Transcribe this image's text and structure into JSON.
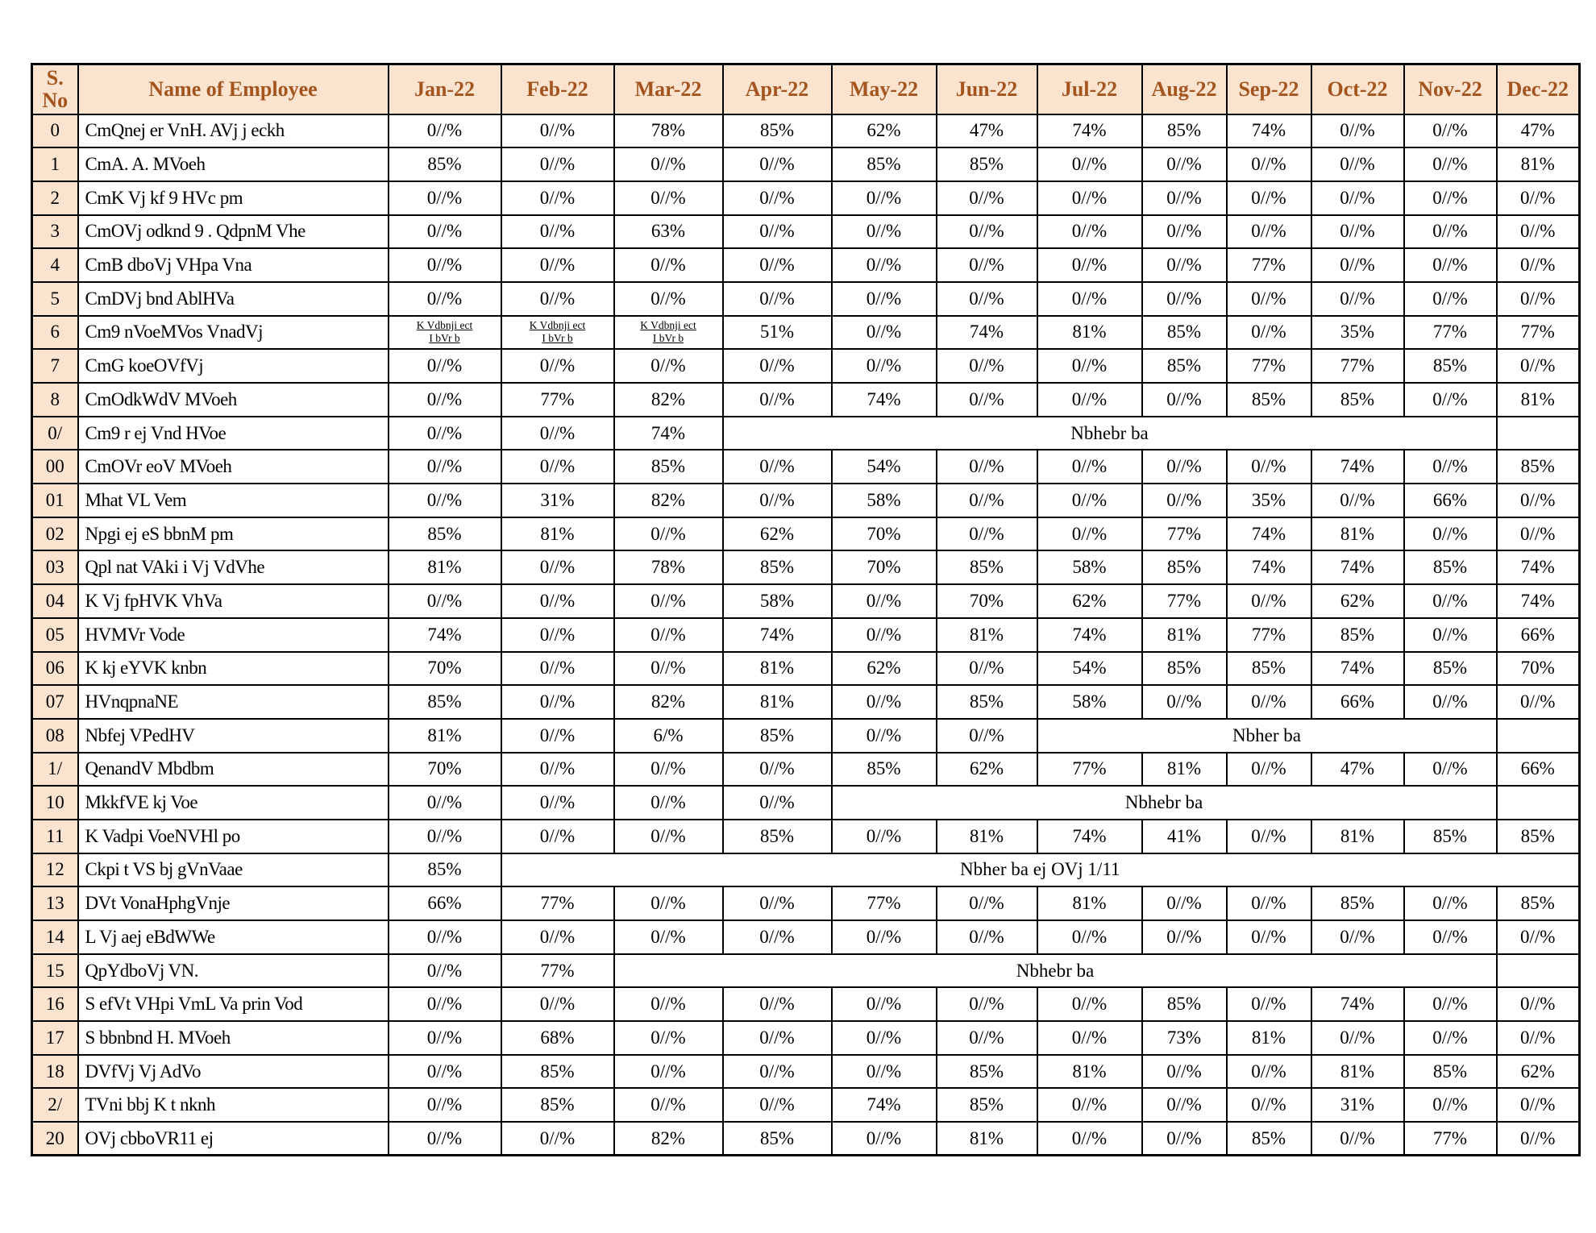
{
  "table": {
    "sno_header": "S. No",
    "name_header": "Name of Employee",
    "month_headers": [
      "Jan-22",
      "Feb-22",
      "Mar-22",
      "Apr-22",
      "May-22",
      "Jun-22",
      "Jul-22",
      "Aug-22",
      "Sep-22",
      "Oct-22",
      "Nov-22",
      "Dec-22"
    ],
    "rows": [
      {
        "sno": "0",
        "name": "CmQnej er VnH. AVj j eckh",
        "cells": [
          "0//%",
          "0//%",
          "78%",
          "85%",
          "62%",
          "47%",
          "74%",
          "85%",
          "74%",
          "0//%",
          "0//%",
          "47%"
        ]
      },
      {
        "sno": "1",
        "name": "CmA. A. MVoeh",
        "cells": [
          "85%",
          "0//%",
          "0//%",
          "0//%",
          "85%",
          "85%",
          "0//%",
          "0//%",
          "0//%",
          "0//%",
          "0//%",
          "81%"
        ]
      },
      {
        "sno": "2",
        "name": "CmK Vj kf 9 HVc pm",
        "cells": [
          "0//%",
          "0//%",
          "0//%",
          "0//%",
          "0//%",
          "0//%",
          "0//%",
          "0//%",
          "0//%",
          "0//%",
          "0//%",
          "0//%"
        ]
      },
      {
        "sno": "3",
        "name": "CmOVj odknd 9 . QdpnM Vhe",
        "cells": [
          "0//%",
          "0//%",
          "63%",
          "0//%",
          "0//%",
          "0//%",
          "0//%",
          "0//%",
          "0//%",
          "0//%",
          "0//%",
          "0//%"
        ]
      },
      {
        "sno": "4",
        "name": "CmB dboVj VHpa Vna",
        "cells": [
          "0//%",
          "0//%",
          "0//%",
          "0//%",
          "0//%",
          "0//%",
          "0//%",
          "0//%",
          "77%",
          "0//%",
          "0//%",
          "0//%"
        ]
      },
      {
        "sno": "5",
        "name": "CmDVj bnd AblHVa",
        "cells": [
          "0//%",
          "0//%",
          "0//%",
          "0//%",
          "0//%",
          "0//%",
          "0//%",
          "0//%",
          "0//%",
          "0//%",
          "0//%",
          "0//%"
        ]
      },
      {
        "sno": "6",
        "name": "Cm9 nVoeMVos VnadVj",
        "cells": [
          {
            "lines": [
              "K Vdbnji ect",
              "I bVr b"
            ]
          },
          {
            "lines": [
              "K Vdbnji ect",
              "I bVr b"
            ]
          },
          {
            "lines": [
              "K Vdbnji ect",
              "I bVr b"
            ]
          },
          "51%",
          "0//%",
          "74%",
          "81%",
          "85%",
          "0//%",
          "35%",
          "77%",
          "77%"
        ]
      },
      {
        "sno": "7",
        "name": "CmG koeOVfVj",
        "cells": [
          "0//%",
          "0//%",
          "0//%",
          "0//%",
          "0//%",
          "0//%",
          "0//%",
          "85%",
          "77%",
          "77%",
          "85%",
          "0//%"
        ]
      },
      {
        "sno": "8",
        "name": "CmOdkWdV MVoeh",
        "cells": [
          "0//%",
          "77%",
          "82%",
          "0//%",
          "74%",
          "0//%",
          "0//%",
          "0//%",
          "85%",
          "85%",
          "0//%",
          "81%"
        ]
      },
      {
        "sno": "0/",
        "name": "Cm9 r ej Vnd HVoe",
        "cells": [
          "0//%",
          "0//%",
          "74%",
          {
            "colspan": 8,
            "value": "Nbhebr ba"
          },
          ""
        ]
      },
      {
        "sno": "00",
        "name": "CmOVr eoV MVoeh",
        "cells": [
          "0//%",
          "0//%",
          "85%",
          "0//%",
          "54%",
          "0//%",
          "0//%",
          "0//%",
          "0//%",
          "74%",
          "0//%",
          "85%"
        ]
      },
      {
        "sno": "01",
        "name": "Mhat VL Vem",
        "cells": [
          "0//%",
          "31%",
          "82%",
          "0//%",
          "58%",
          "0//%",
          "0//%",
          "0//%",
          "35%",
          "0//%",
          "66%",
          "0//%"
        ]
      },
      {
        "sno": "02",
        "name": "Npgi ej eS bbnM pm",
        "cells": [
          "85%",
          "81%",
          "0//%",
          "62%",
          "70%",
          "0//%",
          "0//%",
          "77%",
          "74%",
          "81%",
          "0//%",
          "0//%"
        ]
      },
      {
        "sno": "03",
        "name": "Qpl nat VAki i Vj VdVhe",
        "cells": [
          "81%",
          "0//%",
          "78%",
          "85%",
          "70%",
          "85%",
          "58%",
          "85%",
          "74%",
          "74%",
          "85%",
          "74%"
        ]
      },
      {
        "sno": "04",
        "name": "K Vj fpHVK VhVa",
        "cells": [
          "0//%",
          "0//%",
          "0//%",
          "58%",
          "0//%",
          "70%",
          "62%",
          "77%",
          "0//%",
          "62%",
          "0//%",
          "74%"
        ]
      },
      {
        "sno": "05",
        "name": "HVMVr Vode",
        "cells": [
          "74%",
          "0//%",
          "0//%",
          "74%",
          "0//%",
          "81%",
          "74%",
          "81%",
          "77%",
          "85%",
          "0//%",
          "66%"
        ]
      },
      {
        "sno": "06",
        "name": "K kj eYVK knbn",
        "cells": [
          "70%",
          "0//%",
          "0//%",
          "81%",
          "62%",
          "0//%",
          "54%",
          "85%",
          "85%",
          "74%",
          "85%",
          "70%"
        ]
      },
      {
        "sno": "07",
        "name": "HVnqpnaNE",
        "cells": [
          "85%",
          "0//%",
          "82%",
          "81%",
          "0//%",
          "85%",
          "58%",
          "0//%",
          "0//%",
          "66%",
          "0//%",
          "0//%"
        ]
      },
      {
        "sno": "08",
        "name": "Nbfej VPedHV",
        "cells": [
          "81%",
          "0//%",
          "6/%",
          "85%",
          "0//%",
          "0//%",
          {
            "colspan": 5,
            "value": "Nbher ba"
          },
          ""
        ]
      },
      {
        "sno": "1/",
        "name": "QenandV Mbdbm",
        "cells": [
          "70%",
          "0//%",
          "0//%",
          "0//%",
          "85%",
          "62%",
          "77%",
          "81%",
          "0//%",
          "47%",
          "0//%",
          "66%"
        ]
      },
      {
        "sno": "10",
        "name": "MkkfVE kj Voe",
        "cells": [
          "0//%",
          "0//%",
          "0//%",
          "0//%",
          {
            "colspan": 7,
            "value": "Nbhebr ba"
          },
          ""
        ]
      },
      {
        "sno": "11",
        "name": "K Vadpi VoeNVHl po",
        "cells": [
          "0//%",
          "0//%",
          "0//%",
          "85%",
          "0//%",
          "81%",
          "74%",
          "41%",
          "0//%",
          "81%",
          "85%",
          "85%"
        ]
      },
      {
        "sno": "12",
        "name": "Ckpi t VS bj gVnVaae",
        "cells": [
          "85%",
          {
            "colspan": 11,
            "value": "Nbher ba ej OVj 1/11"
          }
        ]
      },
      {
        "sno": "13",
        "name": "DVt VonaHphgVnje",
        "cells": [
          "66%",
          "77%",
          "0//%",
          "0//%",
          "77%",
          "0//%",
          "81%",
          "0//%",
          "0//%",
          "85%",
          "0//%",
          "85%"
        ]
      },
      {
        "sno": "14",
        "name": "L Vj aej eBdWWe",
        "cells": [
          "0//%",
          "0//%",
          "0//%",
          "0//%",
          "0//%",
          "0//%",
          "0//%",
          "0//%",
          "0//%",
          "0//%",
          "0//%",
          "0//%"
        ]
      },
      {
        "sno": "15",
        "name": "QpYdboVj VN.",
        "cells": [
          "0//%",
          "77%",
          {
            "colspan": 9,
            "value": "Nbhebr ba"
          },
          ""
        ]
      },
      {
        "sno": "16",
        "name": "S efVt VHpi VmL Va prin Vod",
        "cells": [
          "0//%",
          "0//%",
          "0//%",
          "0//%",
          "0//%",
          "0//%",
          "0//%",
          "85%",
          "0//%",
          "74%",
          "0//%",
          "0//%"
        ]
      },
      {
        "sno": "17",
        "name": "S bbnbnd H. MVoeh",
        "cells": [
          "0//%",
          "68%",
          "0//%",
          "0//%",
          "0//%",
          "0//%",
          "0//%",
          "73%",
          "81%",
          "0//%",
          "0//%",
          "0//%"
        ]
      },
      {
        "sno": "18",
        "name": "DVfVj Vj AdVo",
        "cells": [
          "0//%",
          "85%",
          "0//%",
          "0//%",
          "0//%",
          "85%",
          "81%",
          "0//%",
          "0//%",
          "81%",
          "85%",
          "62%"
        ]
      },
      {
        "sno": "2/",
        "name": "TVni bbj K t nknh",
        "cells": [
          "0//%",
          "85%",
          "0//%",
          "0//%",
          "74%",
          "85%",
          "0//%",
          "0//%",
          "0//%",
          "31%",
          "0//%",
          "0//%"
        ]
      },
      {
        "sno": "20",
        "name": "OVj cbboVR11 ej",
        "cells": [
          "0//%",
          "0//%",
          "82%",
          "85%",
          "0//%",
          "81%",
          "0//%",
          "0//%",
          "85%",
          "0//%",
          "77%",
          "0//%"
        ]
      }
    ]
  },
  "colors": {
    "header_bg": "#fbe4cf",
    "header_text": "#a4541d",
    "border": "#000000",
    "cell_bg": "#ffffff",
    "text": "#000000"
  }
}
